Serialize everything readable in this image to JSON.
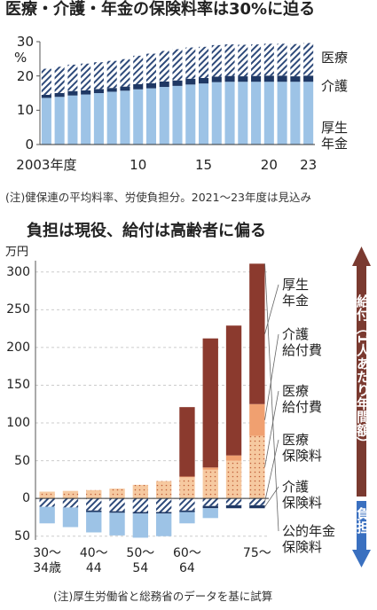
{
  "chart_data": [
    {
      "type": "bar",
      "stacked": true,
      "title": "医療・介護・年金の保険料率は30%に迫る",
      "y_unit": "%",
      "categories": [
        "2003年度",
        null,
        null,
        null,
        null,
        null,
        null,
        "10",
        null,
        null,
        null,
        null,
        "15",
        null,
        null,
        null,
        null,
        "20",
        null,
        null,
        "23"
      ],
      "series": [
        {
          "name": "厚生\n年金",
          "color": "#9dc3e6",
          "values": [
            13.6,
            13.9,
            14.3,
            14.6,
            15.0,
            15.4,
            15.7,
            16.1,
            16.4,
            16.8,
            17.1,
            17.5,
            17.8,
            18.2,
            18.3,
            18.3,
            18.3,
            18.3,
            18.3,
            18.3,
            18.3
          ]
        },
        {
          "name": "介護",
          "color": "#1f3864",
          "values": [
            0.9,
            1.1,
            1.3,
            1.2,
            1.2,
            1.1,
            1.2,
            1.5,
            1.5,
            1.6,
            1.6,
            1.7,
            1.6,
            1.6,
            1.7,
            1.6,
            1.7,
            1.8,
            1.8,
            1.6,
            1.8
          ]
        },
        {
          "name": "医療",
          "color": "#2e4a7a",
          "pattern": "hatch",
          "values": [
            7.6,
            7.7,
            7.7,
            7.8,
            7.8,
            7.9,
            8.0,
            8.3,
            8.6,
            8.9,
            9.1,
            9.1,
            9.1,
            9.2,
            9.2,
            9.2,
            9.2,
            9.3,
            9.3,
            9.4,
            9.5
          ]
        }
      ],
      "ylim": [
        0,
        30
      ],
      "yticks": [
        0,
        10,
        20,
        30
      ],
      "grid": false,
      "note": "(注)健保連の平均料率、労使負担分。2021～23年度は見込み"
    },
    {
      "type": "bar",
      "stacked": true,
      "title": "負担は現役、給付は高齢者に偏る",
      "y_unit": "万円",
      "categories": [
        "30～\n34歳",
        null,
        "40～\n44",
        null,
        "50～\n54",
        null,
        "60～\n64",
        null,
        null,
        "75～"
      ],
      "series": [
        {
          "name": "医療\n給付費",
          "color": "#c0603a",
          "fill": "#f6c9a0",
          "pattern": "dots",
          "values": [
            9,
            10,
            11,
            13,
            18,
            23,
            28,
            38,
            50,
            83
          ]
        },
        {
          "name": "介護\n給付費",
          "color": "#f0a070",
          "values": [
            0,
            0,
            0,
            0,
            0,
            0,
            1,
            3,
            7,
            42
          ]
        },
        {
          "name": "厚生\n年金",
          "color": "#8b3a2e",
          "values": [
            0,
            0,
            0,
            0,
            0,
            0,
            92,
            171,
            172,
            186
          ]
        },
        {
          "name": "医療\n保険料",
          "color": "#2e4a7a",
          "pattern": "hatch",
          "values": [
            -11,
            -12,
            -16,
            -17,
            -18,
            -18,
            -16,
            -10,
            -9,
            -9
          ]
        },
        {
          "name": "介護\n保険料",
          "color": "#1f3864",
          "values": [
            0,
            0,
            -2,
            -2,
            -2,
            -2,
            -2,
            -3,
            -4,
            -4
          ]
        },
        {
          "name": "公的年金\n保険料",
          "color": "#9dc3e6",
          "values": [
            -22,
            -26,
            -27,
            -30,
            -32,
            -30,
            -15,
            -13,
            0,
            0
          ]
        }
      ],
      "ylim": [
        -55,
        315
      ],
      "yticks": [
        {
          "value": -50,
          "label": "50"
        },
        0,
        50,
        100,
        150,
        200,
        250,
        300
      ],
      "grid": true,
      "benefit_label": "給付（1人あたり年間額）",
      "burden_label": "負担",
      "note": "(注)厚生労働省と総務省のデータを基に試算"
    }
  ]
}
